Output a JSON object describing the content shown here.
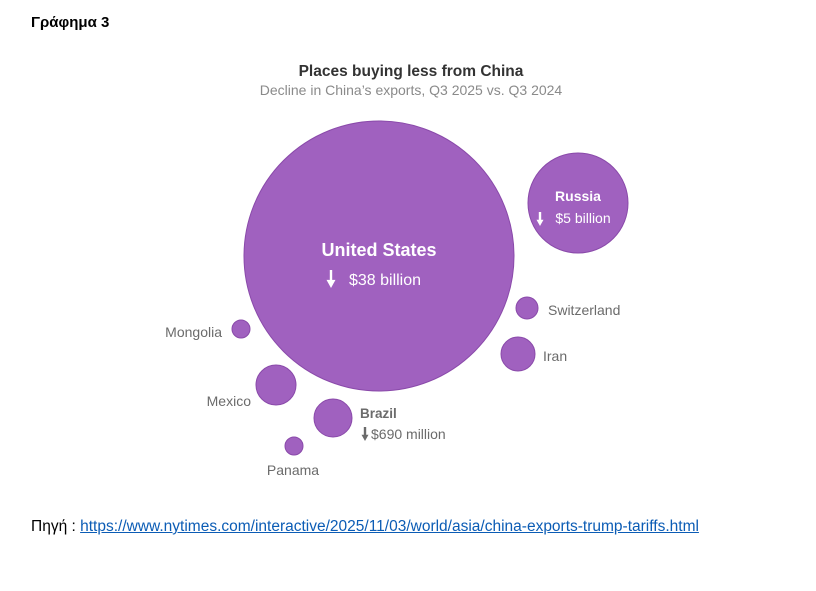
{
  "doc": {
    "figure_label": "Γράφημα 3",
    "source_prefix": "Πηγή : ",
    "source_link": "https://www.nytimes.com/interactive/2025/11/03/world/asia/china-exports-trump-tariffs.html"
  },
  "chart_data": {
    "type": "bubble",
    "title": "Places buying less from China",
    "subtitle": "Decline in China’s exports, Q3 2025 vs. Q3 2024",
    "series_color": "#a061bf",
    "units": "US dollars (billion)",
    "points": [
      {
        "name": "United States",
        "value": 38,
        "value_label": "$38 billion"
      },
      {
        "name": "Russia",
        "value": 5,
        "value_label": "$5 billion"
      },
      {
        "name": "Brazil",
        "value": 0.69,
        "value_label": "$690 million"
      },
      {
        "name": "Mexico",
        "value": 0.6
      },
      {
        "name": "Iran",
        "value": 0.46
      },
      {
        "name": "Switzerland",
        "value": 0.19
      },
      {
        "name": "Mongolia",
        "value": 0.14
      },
      {
        "name": "Panama",
        "value": 0.14
      }
    ]
  }
}
